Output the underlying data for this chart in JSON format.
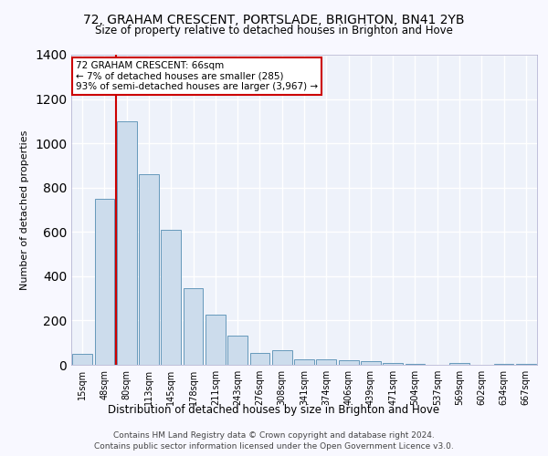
{
  "title1": "72, GRAHAM CRESCENT, PORTSLADE, BRIGHTON, BN41 2YB",
  "title2": "Size of property relative to detached houses in Brighton and Hove",
  "xlabel": "Distribution of detached houses by size in Brighton and Hove",
  "ylabel": "Number of detached properties",
  "categories": [
    "15sqm",
    "48sqm",
    "80sqm",
    "113sqm",
    "145sqm",
    "178sqm",
    "211sqm",
    "243sqm",
    "276sqm",
    "308sqm",
    "341sqm",
    "374sqm",
    "406sqm",
    "439sqm",
    "471sqm",
    "504sqm",
    "537sqm",
    "569sqm",
    "602sqm",
    "634sqm",
    "667sqm"
  ],
  "values": [
    50,
    750,
    1100,
    860,
    610,
    345,
    225,
    130,
    55,
    65,
    25,
    25,
    20,
    15,
    10,
    5,
    0,
    8,
    2,
    5,
    5
  ],
  "bar_color": "#ccdcec",
  "bar_edge_color": "#6699bb",
  "background_color": "#eef2fa",
  "grid_color": "#ffffff",
  "annotation_text": "72 GRAHAM CRESCENT: 66sqm\n← 7% of detached houses are smaller (285)\n93% of semi-detached houses are larger (3,967) →",
  "annotation_box_color": "#ffffff",
  "annotation_box_edge_color": "#cc0000",
  "vline_color": "#cc0000",
  "vline_x": 1.5,
  "ylim": [
    0,
    1400
  ],
  "yticks": [
    0,
    200,
    400,
    600,
    800,
    1000,
    1200,
    1400
  ],
  "footnote1": "Contains HM Land Registry data © Crown copyright and database right 2024.",
  "footnote2": "Contains public sector information licensed under the Open Government Licence v3.0."
}
